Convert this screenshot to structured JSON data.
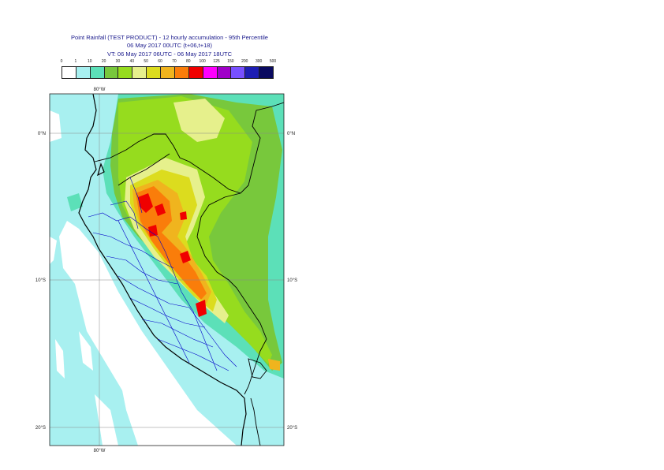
{
  "title": {
    "line1": "Point Rainfall (TEST PRODUCT) - 12 hourly accumulation - 95th Percentile",
    "line2": "06 May 2017 00UTC (t+06,t+18)",
    "line3": "VT: 06 May 2017 06UTC - 06 May 2017 18UTC"
  },
  "legend": {
    "thresholds": [
      "0",
      "1",
      "10",
      "20",
      "30",
      "40",
      "50",
      "60",
      "70",
      "80",
      "100",
      "125",
      "150",
      "200",
      "300",
      "500"
    ],
    "colors": [
      "#ffffff",
      "#a8f0f0",
      "#5ce0b8",
      "#78c83c",
      "#96dc1e",
      "#e6f08c",
      "#dcdc1e",
      "#f0b41e",
      "#fa7d0a",
      "#f00000",
      "#ff00ff",
      "#a000c8",
      "#7850ff",
      "#1e1eb4",
      "#0a0a60"
    ]
  },
  "axes": {
    "lon_top": "80°W",
    "lon_bottom": "80°W",
    "lat_left": [
      "0°N",
      "10°S",
      "20°S"
    ],
    "lat_right": [
      "0°N",
      "10°S",
      "20°S"
    ]
  },
  "colors": {
    "coast": "#000000",
    "admin": "#0000c8",
    "grid": "#888888",
    "sea": "#ffffff"
  }
}
